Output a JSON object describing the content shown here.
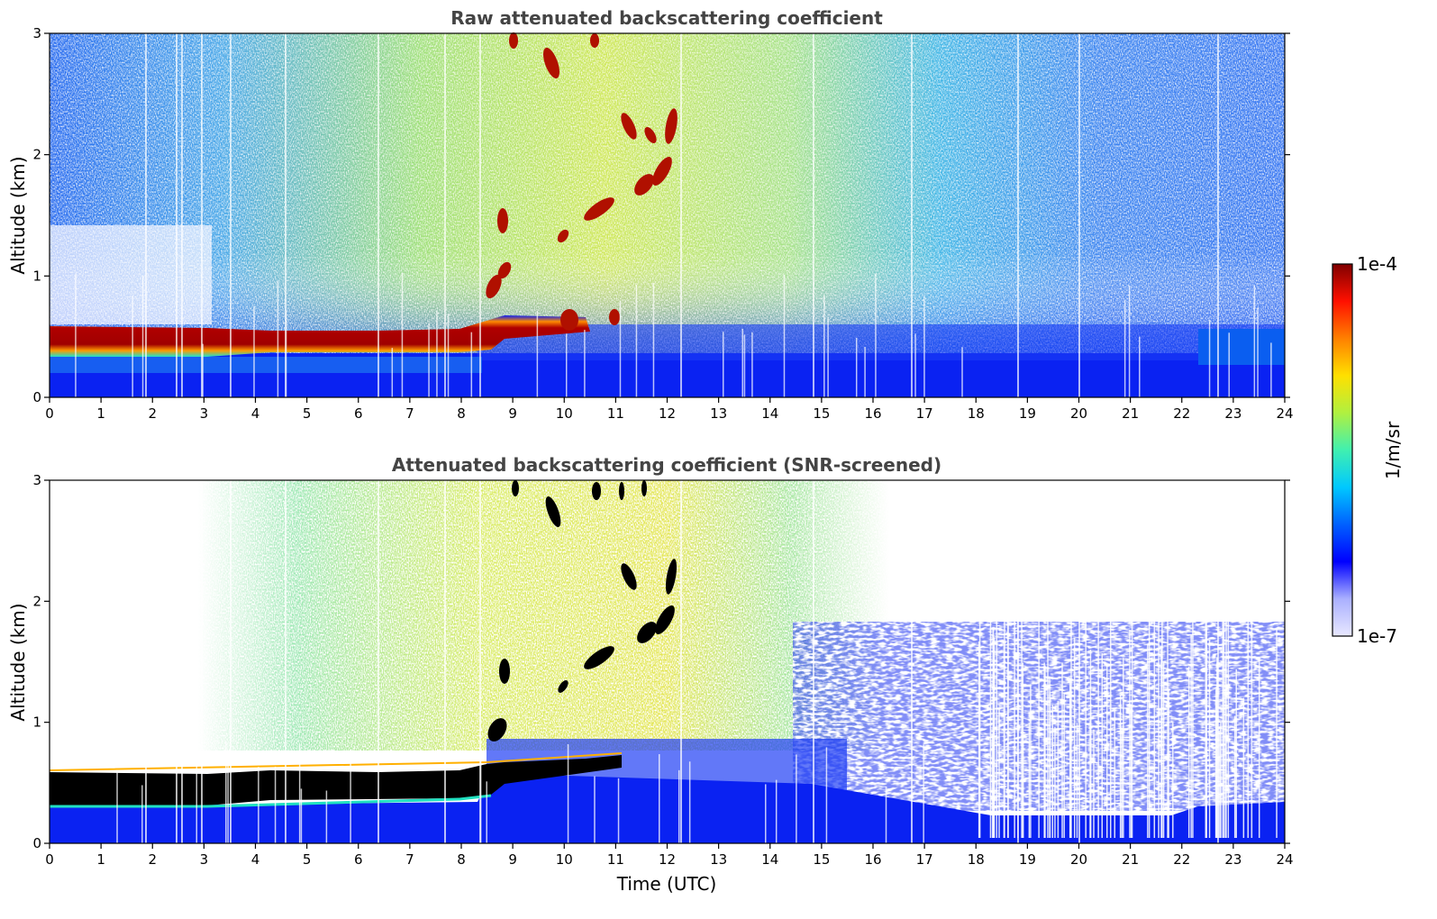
{
  "chart_data": [
    {
      "type": "heatmap",
      "title": "Raw attenuated backscattering coefficient",
      "xlabel": "",
      "ylabel": "Altitude (km)",
      "xlim": [
        0,
        24
      ],
      "ylim": [
        0,
        3
      ],
      "xticks": [
        "0",
        "1",
        "2",
        "3",
        "4",
        "5",
        "6",
        "7",
        "8",
        "9",
        "10",
        "11",
        "12",
        "13",
        "14",
        "15",
        "16",
        "17",
        "18",
        "19",
        "20",
        "21",
        "22",
        "23",
        "24"
      ],
      "yticks": [
        "0",
        "1",
        "2",
        "3"
      ],
      "features": {
        "boundary_layer": [
          {
            "t": 0,
            "alt": 0.46
          },
          {
            "t": 3,
            "alt": 0.45
          },
          {
            "t": 6,
            "alt": 0.45
          },
          {
            "t": 8,
            "alt": 0.45
          },
          {
            "t": 8.6,
            "alt": 0.55
          },
          {
            "t": 9,
            "alt": 0.55
          },
          {
            "t": 10.5,
            "alt": 0.6
          }
        ],
        "cloud_streak": [
          {
            "t": 8.7,
            "alt": 1.0
          },
          {
            "t": 8.9,
            "alt": 1.3
          },
          {
            "t": 10.3,
            "alt": 1.5
          },
          {
            "t": 11.8,
            "alt": 1.8
          },
          {
            "t": 12.0,
            "alt": 2.0
          },
          {
            "t": 11.2,
            "alt": 2.2
          },
          {
            "t": 11.6,
            "alt": 2.35
          },
          {
            "t": 10.0,
            "alt": 2.8
          },
          {
            "t": 9.8,
            "alt": 2.9
          }
        ]
      }
    },
    {
      "type": "heatmap",
      "title": "Attenuated backscattering coefficient (SNR-screened)",
      "xlabel": "Time (UTC)",
      "ylabel": "Altitude (km)",
      "xlim": [
        0,
        24
      ],
      "ylim": [
        0,
        3
      ],
      "xticks": [
        "0",
        "1",
        "2",
        "3",
        "4",
        "5",
        "6",
        "7",
        "8",
        "9",
        "10",
        "11",
        "12",
        "13",
        "14",
        "15",
        "16",
        "17",
        "18",
        "19",
        "20",
        "21",
        "22",
        "23",
        "24"
      ],
      "yticks": [
        "0",
        "1",
        "2",
        "3"
      ],
      "features": {
        "saturated_color": "#000000",
        "lower_dense_layer_top": [
          {
            "t": 0,
            "alt": 0.45
          },
          {
            "t": 18,
            "alt": 0.22
          },
          {
            "t": 22,
            "alt": 0.28
          },
          {
            "t": 24,
            "alt": 0.35
          }
        ]
      }
    }
  ],
  "colorbar": {
    "label": "1/m/sr",
    "max_label": "1e-4",
    "min_label": "1e-7",
    "scale": "log",
    "colors": [
      "#e8e8ff",
      "#aab0ff",
      "#0000ff",
      "#0060ff",
      "#00c8ff",
      "#40f0b0",
      "#b0f040",
      "#ffe000",
      "#ff8000",
      "#ff1000",
      "#800000"
    ]
  }
}
